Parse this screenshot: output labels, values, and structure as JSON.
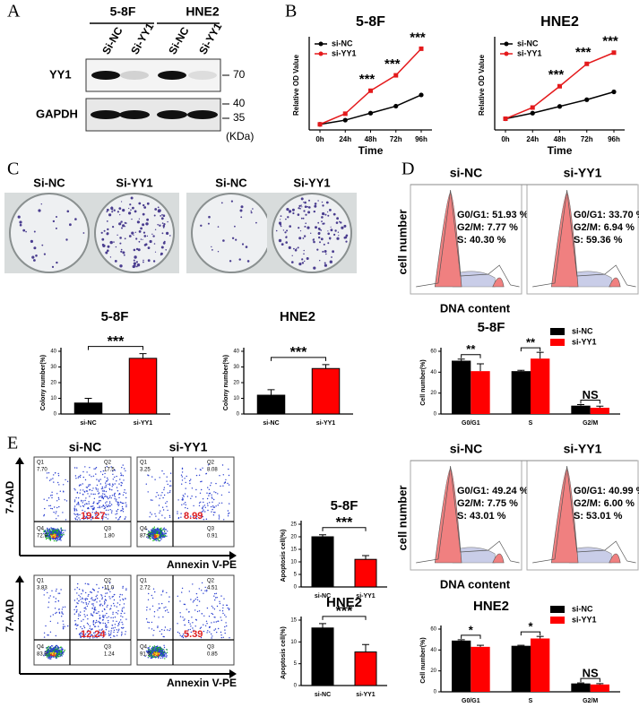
{
  "figure": {
    "panel_labels": [
      "A",
      "B",
      "C",
      "D",
      "E"
    ],
    "blot": {
      "groups": [
        "5-8F",
        "HNE2"
      ],
      "lanes": [
        "Si-NC",
        "Si-YY1",
        "Si-NC",
        "Si-YY1"
      ],
      "rows": [
        "YY1",
        "GAPDH"
      ],
      "markers": [
        "70",
        "40",
        "35"
      ],
      "unit": "(KDa)"
    },
    "plates": [
      "Si-NC",
      "Si-YY1",
      "Si-NC",
      "Si-YY1"
    ],
    "cell_cycle": [
      {
        "conditions": [
          "si-NC",
          "si-YY1"
        ],
        "stats": [
          [
            "G0/G1: 51.93 %",
            "G2/M: 7.77 %",
            "S: 40.30 %"
          ],
          [
            "G0/G1: 33.70 %",
            "G2/M: 6.94 %",
            "S: 59.36 %"
          ]
        ],
        "y_label": "cell number",
        "x_label": "DNA content"
      },
      {
        "conditions": [
          "si-NC",
          "si-YY1"
        ],
        "stats": [
          [
            "G0/G1: 49.24 %",
            "G2/M: 7.75 %",
            "S: 43.01 %"
          ],
          [
            "G0/G1: 40.99 %",
            "G2/M: 6.00 %",
            "S: 53.01 %"
          ]
        ],
        "y_label": "cell number",
        "x_label": "DNA content"
      }
    ],
    "flow": {
      "conditions": [
        "si-NC",
        "si-YY1"
      ],
      "y_label": "7-AAD",
      "x_label": "Annexin V-PE",
      "plots": [
        {
          "Q1": "7.70",
          "Q2": "17.5",
          "Q3": "1.80",
          "Q4": "72.9",
          "apoptosis": "19.27"
        },
        {
          "Q1": "3.25",
          "Q2": "8.08",
          "Q3": "0.91",
          "Q4": "87.8",
          "apoptosis": "8.99"
        },
        {
          "Q1": "3.83",
          "Q2": "11.0",
          "Q3": "1.24",
          "Q4": "83.9",
          "apoptosis": "12.24"
        },
        {
          "Q1": "2.72",
          "Q2": "4.51",
          "Q3": "0.85",
          "Q4": "91.9",
          "apoptosis": "5.39"
        }
      ]
    }
  },
  "chart_data": [
    {
      "type": "line",
      "title": "5-8F",
      "y_label": "Relative OD Value",
      "x_label": "Time",
      "categories": [
        "0h",
        "24h",
        "48h",
        "72h",
        "96h"
      ],
      "series": [
        {
          "name": "si-NC",
          "color": "#000000",
          "values": [
            1,
            1.15,
            1.4,
            1.65,
            2.05
          ]
        },
        {
          "name": "si-YY1",
          "color": "#e41a1c",
          "values": [
            1,
            1.38,
            2.2,
            2.75,
            3.7
          ]
        }
      ],
      "annotations": [
        null,
        null,
        "***",
        "***",
        "***"
      ],
      "ylim": [
        0.8,
        4
      ]
    },
    {
      "type": "line",
      "title": "HNE2",
      "y_label": "Relative OD Value",
      "x_label": "Time",
      "categories": [
        "0h",
        "24h",
        "48h",
        "72h",
        "96h"
      ],
      "series": [
        {
          "name": "si-NC",
          "color": "#000000",
          "values": [
            1,
            1.25,
            1.55,
            1.85,
            2.2
          ]
        },
        {
          "name": "si-YY1",
          "color": "#e41a1c",
          "values": [
            1,
            1.5,
            2.45,
            3.45,
            3.95
          ]
        }
      ],
      "annotations": [
        null,
        null,
        "***",
        "***",
        "***"
      ],
      "ylim": [
        0.5,
        4.5
      ]
    },
    {
      "type": "bar",
      "title": "5-8F",
      "y_label": "Colony number(%)",
      "categories": [
        "si-NC",
        "si-YY1"
      ],
      "values": [
        7,
        35.5
      ],
      "errors": [
        3,
        3
      ],
      "colors": [
        "#000000",
        "#ff0000"
      ],
      "annotations": [
        "***"
      ],
      "ylim": [
        0,
        40
      ],
      "yticks": [
        0,
        10,
        20,
        30,
        40
      ]
    },
    {
      "type": "bar",
      "title": "HNE2",
      "y_label": "Colony number(%)",
      "categories": [
        "si-NC",
        "si-YY1"
      ],
      "values": [
        12,
        29
      ],
      "errors": [
        3.5,
        2.5
      ],
      "colors": [
        "#000000",
        "#ff0000"
      ],
      "annotations": [
        "***"
      ],
      "ylim": [
        0,
        40
      ],
      "yticks": [
        0,
        10,
        20,
        30,
        40
      ]
    },
    {
      "type": "bar",
      "title": "5-8F",
      "y_label": "Cell number(%)",
      "categories": [
        "G0/G1",
        "S",
        "G2/M"
      ],
      "series": [
        {
          "name": "si-NC",
          "color": "#000000",
          "values": [
            51,
            41,
            8
          ],
          "errors": [
            1.5,
            0.8,
            1
          ]
        },
        {
          "name": "si-YY1",
          "color": "#ff0000",
          "values": [
            41,
            53,
            6
          ],
          "errors": [
            7,
            6,
            1.5
          ]
        }
      ],
      "annotations": [
        "**",
        "**",
        "NS"
      ],
      "ylim": [
        0,
        60
      ],
      "yticks": [
        0,
        20,
        40,
        60
      ],
      "legend": "top-right"
    },
    {
      "type": "bar",
      "title": "5-8F",
      "y_label": "Apoptosis cell(%)",
      "categories": [
        "si-NC",
        "si-YY1"
      ],
      "values": [
        20,
        11
      ],
      "errors": [
        0.8,
        1.5
      ],
      "colors": [
        "#000000",
        "#ff0000"
      ],
      "annotations": [
        "***"
      ],
      "ylim": [
        0,
        25
      ],
      "yticks": [
        0,
        5,
        10,
        15,
        20,
        25
      ]
    },
    {
      "type": "bar",
      "title": "HNE2",
      "y_label": "Apoptosis cell(%)",
      "categories": [
        "si-NC",
        "si-YY1"
      ],
      "values": [
        13.2,
        7.7
      ],
      "errors": [
        1,
        1.7
      ],
      "colors": [
        "#000000",
        "#ff0000"
      ],
      "annotations": [
        "***"
      ],
      "ylim": [
        0,
        15
      ],
      "yticks": [
        0,
        5,
        10,
        15
      ]
    },
    {
      "type": "bar",
      "title": "HNE2",
      "y_label": "Cell number(%)",
      "categories": [
        "G0/G1",
        "S",
        "G2/M"
      ],
      "series": [
        {
          "name": "si-NC",
          "color": "#000000",
          "values": [
            49,
            44,
            8
          ],
          "errors": [
            0.8,
            0.5,
            0.5
          ]
        },
        {
          "name": "si-YY1",
          "color": "#ff0000",
          "values": [
            43,
            51,
            7
          ],
          "errors": [
            1.5,
            2,
            0.8
          ]
        }
      ],
      "annotations": [
        "*",
        "*",
        "NS"
      ],
      "ylim": [
        0,
        60
      ],
      "yticks": [
        0,
        20,
        40,
        60
      ],
      "legend": "top-right"
    }
  ]
}
